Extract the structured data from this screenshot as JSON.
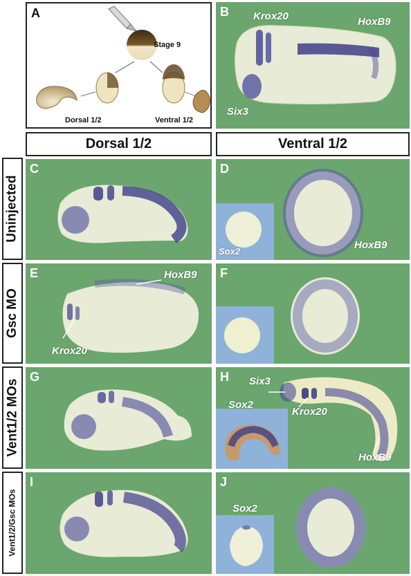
{
  "panels": {
    "A": {
      "letter": "A",
      "stage": "Stage 9",
      "dorsal": "Dorsal 1/2",
      "ventral": "Ventral 1/2"
    },
    "B": {
      "letter": "B",
      "labels": [
        "Krox20",
        "HoxB9",
        "Six3"
      ]
    },
    "C": {
      "letter": "C"
    },
    "D": {
      "letter": "D",
      "inset_label": "Sox2",
      "label": "HoxB9"
    },
    "E": {
      "letter": "E",
      "labels": [
        "HoxB9",
        "Krox20"
      ]
    },
    "F": {
      "letter": "F"
    },
    "G": {
      "letter": "G"
    },
    "H": {
      "letter": "H",
      "labels": [
        "Six3",
        "Sox2",
        "Krox20",
        "HoxB9"
      ]
    },
    "I": {
      "letter": "I"
    },
    "J": {
      "letter": "J",
      "inset_label": "Sox2"
    }
  },
  "column_headers": [
    "Dorsal 1/2",
    "Ventral 1/2"
  ],
  "row_labels": [
    "Uninjected",
    "Gsc MO",
    "Vent1/2 MOs",
    "Vent1/2/Gsc MOs"
  ],
  "colors": {
    "background": "#6aa66d",
    "inset": "#8fb2d9",
    "stain": "#4a4a9a",
    "embryo": "#ecefd6"
  }
}
